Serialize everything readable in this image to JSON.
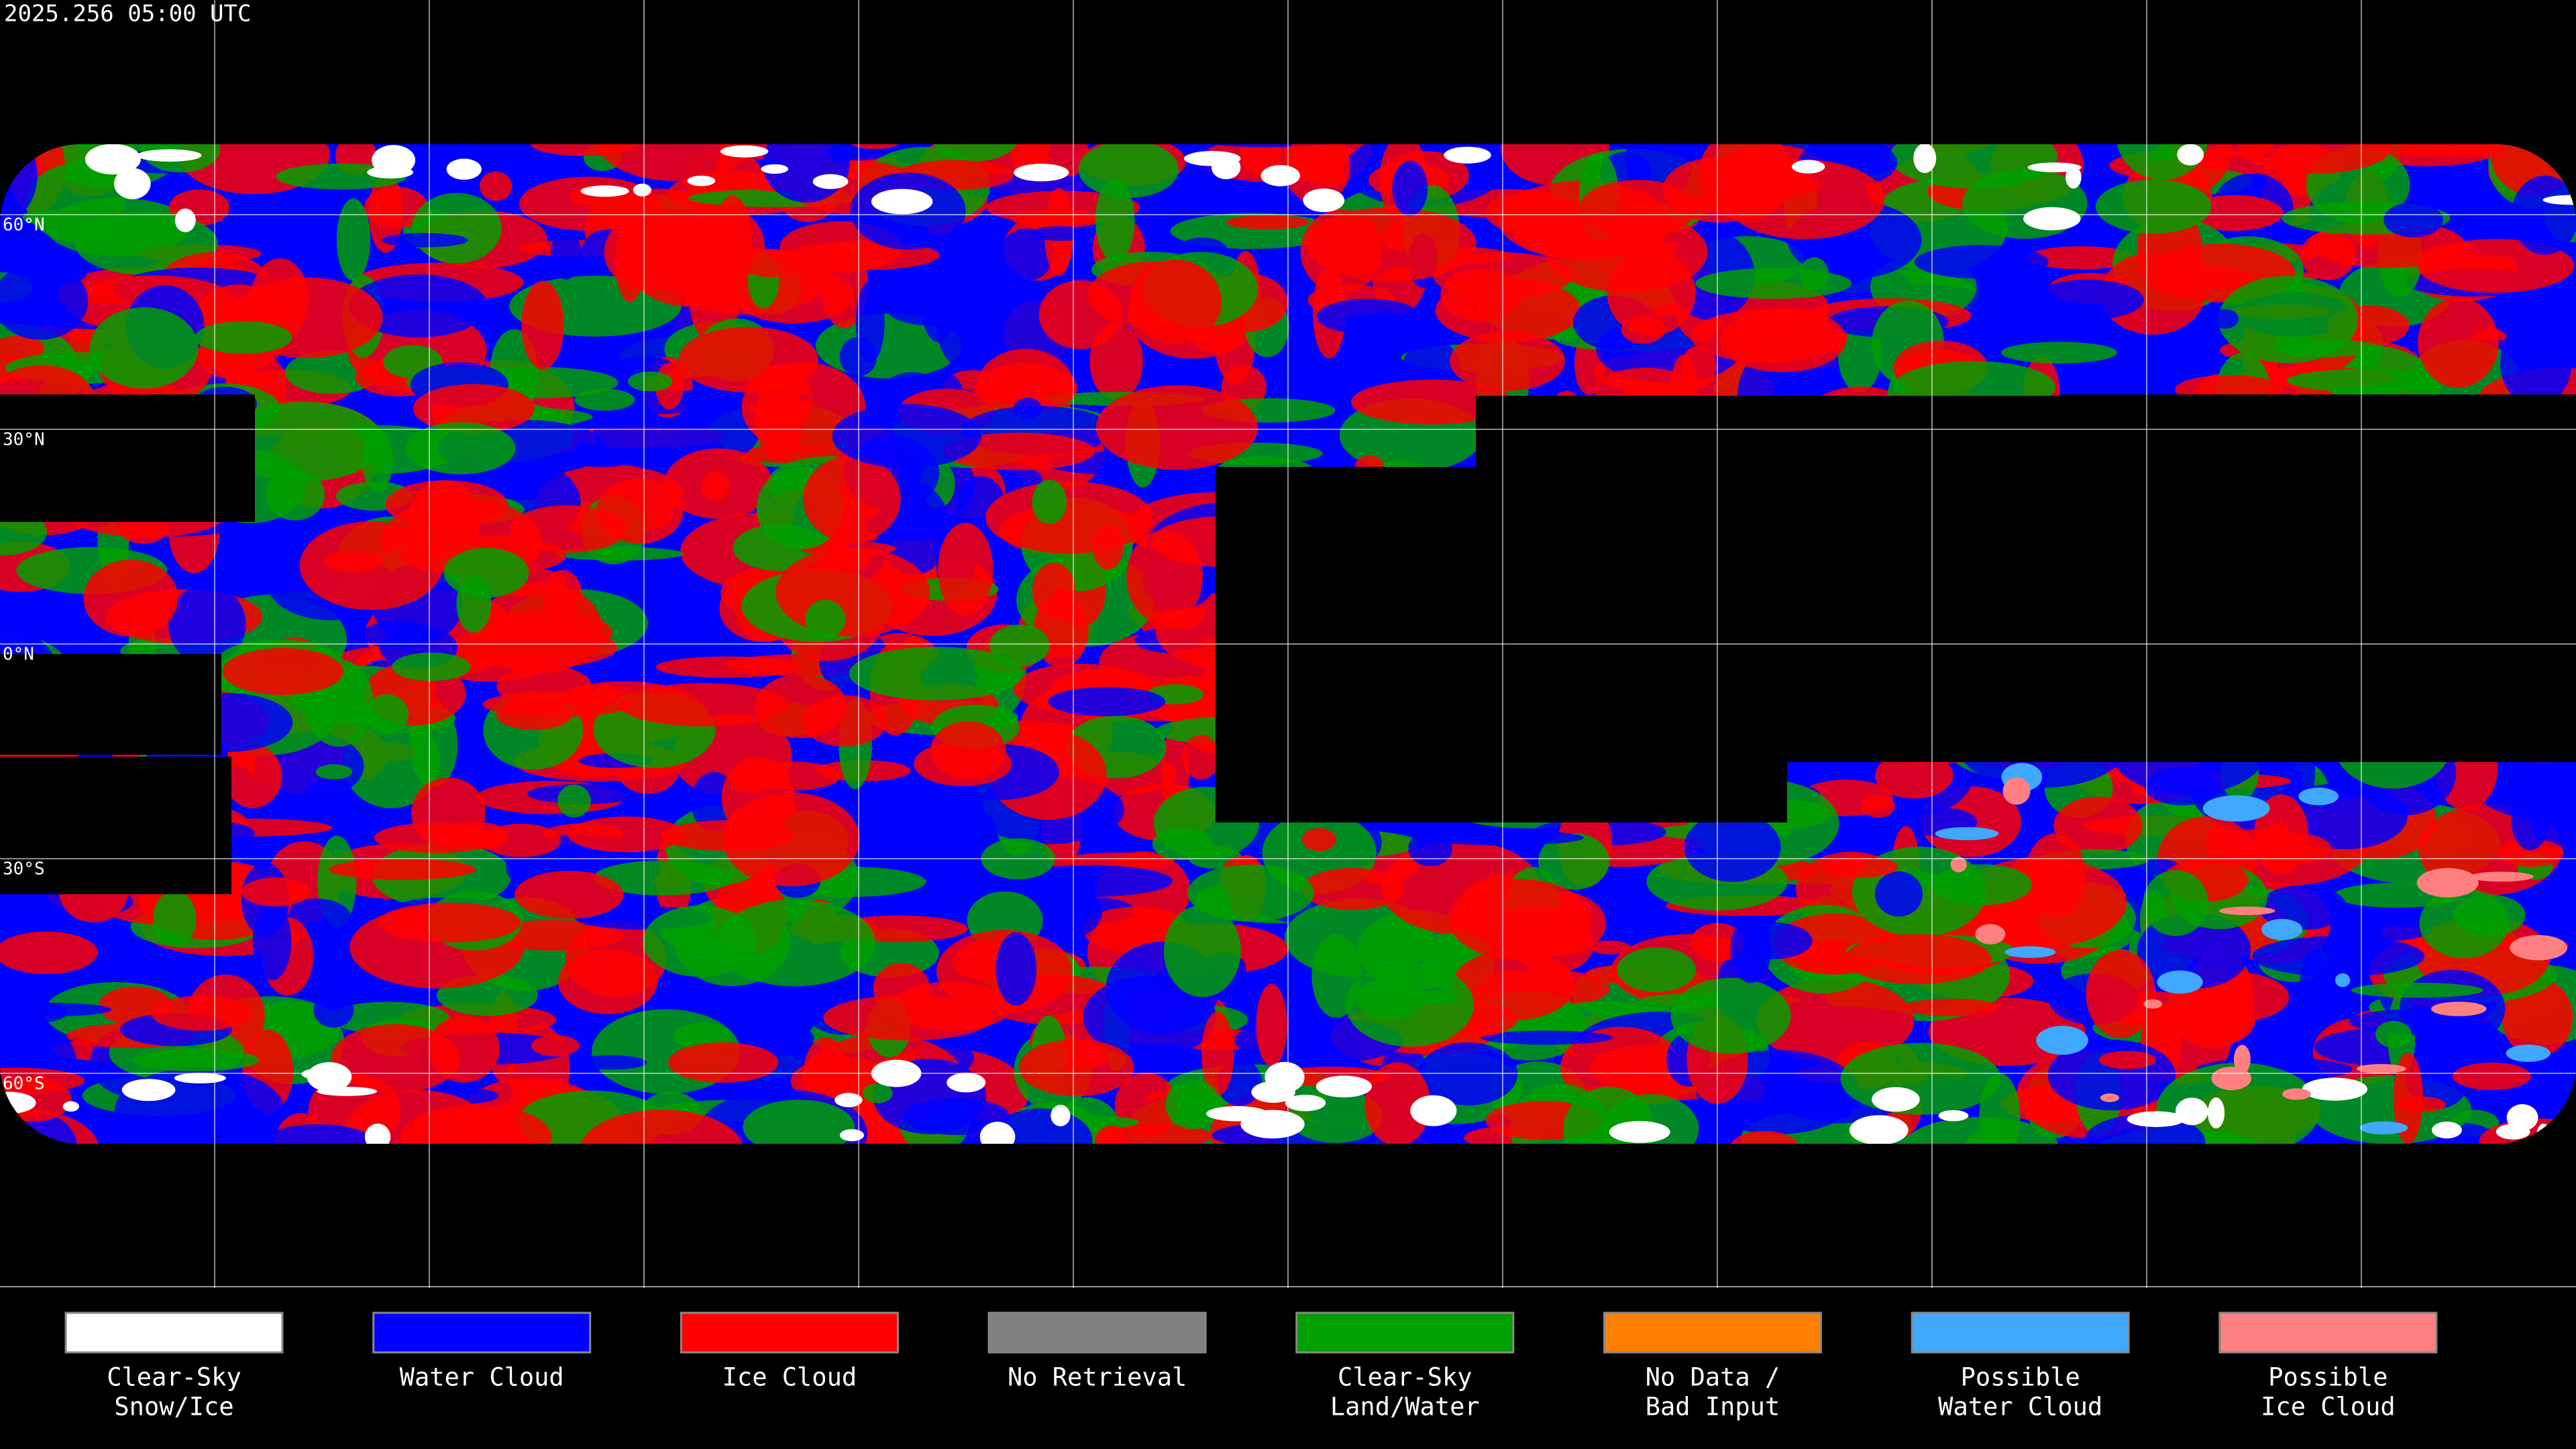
{
  "title": "2025.256 05:00 UTC",
  "latitude_labels": [
    "60°N",
    "30°N",
    "0°N",
    "30°S",
    "60°S"
  ],
  "legend": [
    {
      "label": [
        "Clear-Sky",
        "Snow/Ice"
      ],
      "color": "#ffffff"
    },
    {
      "label": [
        "Water Cloud"
      ],
      "color": "#0000ff"
    },
    {
      "label": [
        "Ice Cloud"
      ],
      "color": "#ff0000"
    },
    {
      "label": [
        "No Retrieval"
      ],
      "color": "#808080"
    },
    {
      "label": [
        "Clear-Sky",
        "Land/Water"
      ],
      "color": "#00a000"
    },
    {
      "label": [
        "No Data /",
        "Bad Input"
      ],
      "color": "#ff8000"
    },
    {
      "label": [
        "Possible",
        "Water Cloud"
      ],
      "color": "#40a8ff"
    },
    {
      "label": [
        "Possible",
        "Ice Cloud"
      ],
      "color": "#ff8080"
    }
  ]
}
